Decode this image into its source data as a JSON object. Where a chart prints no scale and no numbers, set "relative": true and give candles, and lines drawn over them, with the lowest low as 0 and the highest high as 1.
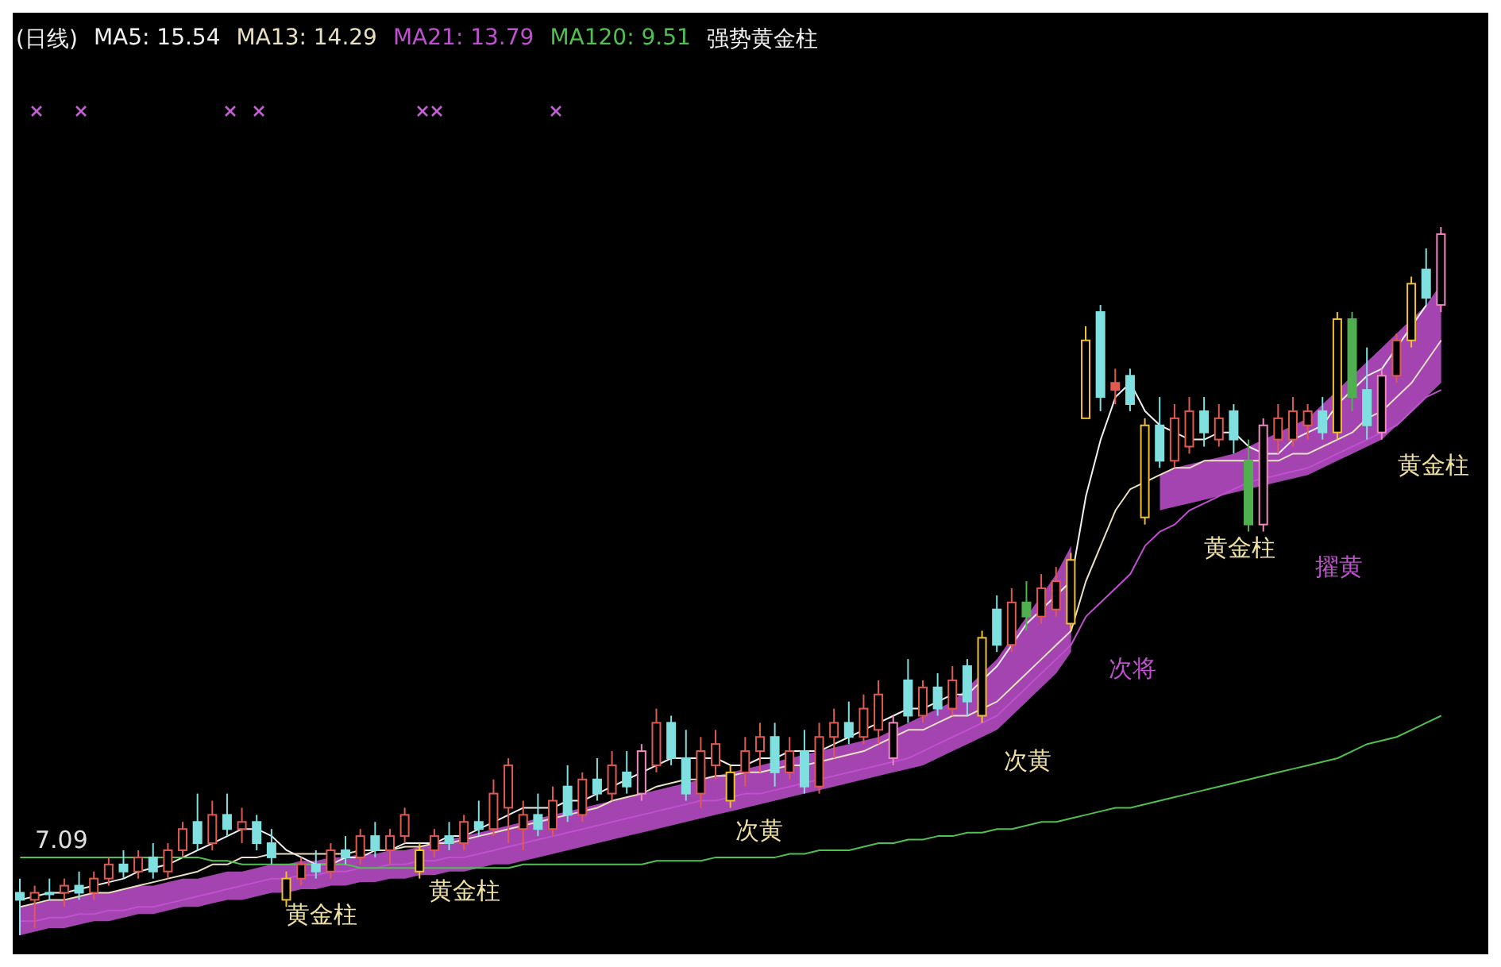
{
  "chart_data": {
    "type": "candlestick",
    "title": "(日线)",
    "subtitle": "强势黄金柱",
    "relative": true,
    "tick_labels": false,
    "legend": "top left",
    "categories": [
      null,
      null,
      null,
      null,
      null,
      null,
      null,
      null,
      null,
      null,
      null,
      null,
      null,
      null,
      null,
      null,
      null,
      null,
      null,
      null,
      null,
      null,
      null,
      null,
      null,
      null,
      null,
      null,
      null,
      null,
      null,
      null,
      null,
      null,
      null,
      null,
      null,
      null,
      null,
      null,
      null,
      null,
      null,
      null,
      null,
      null,
      null,
      null,
      null,
      null,
      null,
      null,
      null,
      null,
      null,
      null,
      null,
      null,
      null,
      null,
      null,
      null,
      null,
      null,
      null,
      null,
      null,
      null,
      null,
      null,
      null,
      null,
      null,
      null,
      null,
      null,
      null,
      null,
      null,
      null,
      null,
      null,
      null,
      null,
      null,
      null,
      null,
      null,
      null,
      null,
      null,
      null,
      null,
      null,
      null,
      null,
      null
    ],
    "ohlc": [
      [
        0.06,
        0.08,
        0.0,
        0.05
      ],
      [
        0.05,
        0.07,
        0.01,
        0.06
      ],
      [
        0.06,
        0.08,
        0.05,
        0.06
      ],
      [
        0.06,
        0.08,
        0.04,
        0.07
      ],
      [
        0.07,
        0.09,
        0.05,
        0.06
      ],
      [
        0.06,
        0.09,
        0.05,
        0.08
      ],
      [
        0.08,
        0.11,
        0.07,
        0.1
      ],
      [
        0.1,
        0.12,
        0.08,
        0.09
      ],
      [
        0.09,
        0.12,
        0.08,
        0.11
      ],
      [
        0.11,
        0.13,
        0.08,
        0.09
      ],
      [
        0.09,
        0.13,
        0.08,
        0.12
      ],
      [
        0.12,
        0.16,
        0.11,
        0.15
      ],
      [
        0.16,
        0.2,
        0.12,
        0.13
      ],
      [
        0.13,
        0.19,
        0.12,
        0.17
      ],
      [
        0.17,
        0.2,
        0.14,
        0.15
      ],
      [
        0.15,
        0.18,
        0.13,
        0.16
      ],
      [
        0.16,
        0.17,
        0.12,
        0.13
      ],
      [
        0.13,
        0.15,
        0.1,
        0.11
      ],
      [
        0.05,
        0.09,
        0.04,
        0.08
      ],
      [
        0.08,
        0.11,
        0.07,
        0.1
      ],
      [
        0.1,
        0.12,
        0.08,
        0.09
      ],
      [
        0.09,
        0.13,
        0.08,
        0.12
      ],
      [
        0.12,
        0.14,
        0.1,
        0.11
      ],
      [
        0.11,
        0.15,
        0.1,
        0.14
      ],
      [
        0.14,
        0.16,
        0.11,
        0.12
      ],
      [
        0.12,
        0.15,
        0.1,
        0.14
      ],
      [
        0.14,
        0.18,
        0.13,
        0.17
      ],
      [
        0.09,
        0.13,
        0.08,
        0.12
      ],
      [
        0.12,
        0.15,
        0.11,
        0.14
      ],
      [
        0.14,
        0.16,
        0.12,
        0.13
      ],
      [
        0.13,
        0.17,
        0.12,
        0.16
      ],
      [
        0.16,
        0.19,
        0.14,
        0.15
      ],
      [
        0.15,
        0.22,
        0.14,
        0.2
      ],
      [
        0.18,
        0.25,
        0.13,
        0.24
      ],
      [
        0.15,
        0.19,
        0.12,
        0.17
      ],
      [
        0.17,
        0.2,
        0.14,
        0.15
      ],
      [
        0.15,
        0.21,
        0.14,
        0.19
      ],
      [
        0.21,
        0.24,
        0.16,
        0.17
      ],
      [
        0.17,
        0.23,
        0.16,
        0.22
      ],
      [
        0.22,
        0.25,
        0.19,
        0.2
      ],
      [
        0.2,
        0.26,
        0.19,
        0.24
      ],
      [
        0.23,
        0.26,
        0.2,
        0.21
      ],
      [
        0.2,
        0.27,
        0.19,
        0.26
      ],
      [
        0.24,
        0.32,
        0.23,
        0.3
      ],
      [
        0.3,
        0.31,
        0.24,
        0.25
      ],
      [
        0.25,
        0.29,
        0.19,
        0.2
      ],
      [
        0.2,
        0.28,
        0.18,
        0.26
      ],
      [
        0.24,
        0.29,
        0.22,
        0.27
      ],
      [
        0.19,
        0.24,
        0.18,
        0.23
      ],
      [
        0.23,
        0.28,
        0.21,
        0.26
      ],
      [
        0.26,
        0.3,
        0.23,
        0.28
      ],
      [
        0.28,
        0.3,
        0.21,
        0.23
      ],
      [
        0.23,
        0.28,
        0.22,
        0.26
      ],
      [
        0.26,
        0.29,
        0.2,
        0.21
      ],
      [
        0.21,
        0.3,
        0.2,
        0.28
      ],
      [
        0.28,
        0.32,
        0.25,
        0.3
      ],
      [
        0.3,
        0.33,
        0.27,
        0.28
      ],
      [
        0.28,
        0.34,
        0.27,
        0.32
      ],
      [
        0.29,
        0.36,
        0.27,
        0.34
      ],
      [
        0.25,
        0.31,
        0.24,
        0.3
      ],
      [
        0.36,
        0.39,
        0.3,
        0.31
      ],
      [
        0.31,
        0.36,
        0.3,
        0.35
      ],
      [
        0.35,
        0.37,
        0.31,
        0.32
      ],
      [
        0.32,
        0.38,
        0.31,
        0.36
      ],
      [
        0.38,
        0.39,
        0.31,
        0.33
      ],
      [
        0.31,
        0.43,
        0.3,
        0.42
      ],
      [
        0.46,
        0.48,
        0.4,
        0.41
      ],
      [
        0.41,
        0.49,
        0.4,
        0.47
      ],
      [
        0.47,
        0.5,
        0.43,
        0.45
      ],
      [
        0.45,
        0.51,
        0.44,
        0.49
      ],
      [
        0.46,
        0.52,
        0.45,
        0.5
      ],
      [
        0.44,
        0.54,
        0.43,
        0.53
      ],
      [
        0.73,
        0.86,
        0.73,
        0.84
      ],
      [
        0.88,
        0.89,
        0.74,
        0.76
      ],
      [
        0.78,
        0.8,
        0.75,
        0.77
      ],
      [
        0.79,
        0.8,
        0.74,
        0.75
      ],
      [
        0.59,
        0.73,
        0.58,
        0.72
      ],
      [
        0.72,
        0.76,
        0.66,
        0.67
      ],
      [
        0.67,
        0.75,
        0.66,
        0.73
      ],
      [
        0.69,
        0.76,
        0.68,
        0.74
      ],
      [
        0.74,
        0.76,
        0.69,
        0.71
      ],
      [
        0.7,
        0.75,
        0.69,
        0.73
      ],
      [
        0.74,
        0.75,
        0.68,
        0.7
      ],
      [
        0.67,
        0.7,
        0.57,
        0.58
      ],
      [
        0.58,
        0.73,
        0.57,
        0.72
      ],
      [
        0.7,
        0.75,
        0.68,
        0.73
      ],
      [
        0.7,
        0.76,
        0.69,
        0.74
      ],
      [
        0.72,
        0.75,
        0.7,
        0.74
      ],
      [
        0.74,
        0.76,
        0.7,
        0.71
      ],
      [
        0.71,
        0.88,
        0.7,
        0.87
      ],
      [
        0.87,
        0.88,
        0.74,
        0.76
      ],
      [
        0.77,
        0.83,
        0.7,
        0.72
      ],
      [
        0.71,
        0.8,
        0.7,
        0.79
      ],
      [
        0.79,
        0.85,
        0.78,
        0.84
      ],
      [
        0.84,
        0.93,
        0.83,
        0.92
      ],
      [
        0.94,
        0.97,
        0.89,
        0.9
      ],
      [
        0.89,
        1.0,
        0.88,
        0.99
      ]
    ],
    "colors": [
      "#80e0e0",
      "#e05a50",
      "#80e0e0",
      "#e05a50",
      "#80e0e0",
      "#e05a50",
      "#e05a50",
      "#80e0e0",
      "#e05a50",
      "#80e0e0",
      "#e05a50",
      "#e05a50",
      "#80e0e0",
      "#e05a50",
      "#80e0e0",
      "#e05a50",
      "#80e0e0",
      "#80e0e0",
      "#f0c030",
      "#e05a50",
      "#80e0e0",
      "#e05a50",
      "#80e0e0",
      "#e05a50",
      "#80e0e0",
      "#e05a50",
      "#e05a50",
      "#f0c030",
      "#e05a50",
      "#80e0e0",
      "#e05a50",
      "#80e0e0",
      "#e05a50",
      "#e05a50",
      "#e05a50",
      "#80e0e0",
      "#e05a50",
      "#80e0e0",
      "#e05a50",
      "#80e0e0",
      "#e05a50",
      "#80e0e0",
      "#f088c0",
      "#e05a50",
      "#80e0e0",
      "#80e0e0",
      "#e05a50",
      "#e05a50",
      "#f0c030",
      "#e05a50",
      "#e05a50",
      "#80e0e0",
      "#e05a50",
      "#80e0e0",
      "#e05a50",
      "#e05a50",
      "#80e0e0",
      "#e05a50",
      "#e05a50",
      "#f088c0",
      "#80e0e0",
      "#e05a50",
      "#80e0e0",
      "#e05a50",
      "#80e0e0",
      "#f0c030",
      "#80e0e0",
      "#e05a50",
      "#50b050",
      "#e05a50",
      "#e05a50",
      "#f0c030",
      "#f0c030",
      "#80e0e0",
      "#e05a50",
      "#80e0e0",
      "#f0c030",
      "#80e0e0",
      "#e05a50",
      "#e05a50",
      "#80e0e0",
      "#e05a50",
      "#80e0e0",
      "#50b050",
      "#f088c0",
      "#e05a50",
      "#e05a50",
      "#e05a50",
      "#80e0e0",
      "#f0c030",
      "#50b050",
      "#80e0e0",
      "#f088c0",
      "#e05a50",
      "#f0c030",
      "#80e0e0",
      "#f088c0"
    ],
    "series": [
      {
        "type": "line",
        "name": "MA21: 13.79",
        "color": "#c050d0",
        "lower": [
          0.0,
          0.005,
          0.01,
          0.01,
          0.015,
          0.02,
          0.02,
          0.025,
          0.03,
          0.03,
          0.035,
          0.04,
          0.04,
          0.045,
          0.05,
          0.05,
          0.055,
          0.06,
          0.06,
          0.065,
          0.065,
          0.07,
          0.07,
          0.075,
          0.075,
          0.08,
          0.08,
          0.085,
          0.085,
          0.09,
          0.09,
          0.095,
          0.1,
          0.1,
          0.105,
          0.11,
          0.115,
          0.12,
          0.125,
          0.13,
          0.135,
          0.14,
          0.145,
          0.15,
          0.155,
          0.16,
          0.165,
          0.17,
          0.175,
          0.18,
          0.185,
          0.19,
          0.195,
          0.2,
          0.205,
          0.21,
          0.215,
          0.22,
          0.225,
          0.23,
          0.235,
          0.24,
          0.25,
          0.26,
          0.27,
          0.28,
          0.29,
          0.31,
          0.33,
          0.35,
          0.37,
          0.4,
          null,
          null,
          null,
          null,
          null,
          0.6,
          0.605,
          0.61,
          0.615,
          0.62,
          0.625,
          0.63,
          0.635,
          0.64,
          0.645,
          0.65,
          0.66,
          0.67,
          0.68,
          0.69,
          0.7,
          0.72,
          0.74,
          0.76,
          0.78
        ],
        "upper": [
          0.04,
          0.045,
          0.05,
          0.05,
          0.055,
          0.06,
          0.06,
          0.065,
          0.07,
          0.07,
          0.075,
          0.08,
          0.08,
          0.085,
          0.09,
          0.09,
          0.095,
          0.1,
          0.1,
          0.105,
          0.105,
          0.11,
          0.11,
          0.115,
          0.115,
          0.12,
          0.12,
          0.125,
          0.13,
          0.135,
          0.14,
          0.145,
          0.15,
          0.155,
          0.16,
          0.165,
          0.17,
          0.175,
          0.18,
          0.185,
          0.19,
          0.195,
          0.2,
          0.205,
          0.21,
          0.215,
          0.22,
          0.225,
          0.23,
          0.235,
          0.24,
          0.245,
          0.25,
          0.255,
          0.26,
          0.265,
          0.27,
          0.275,
          0.28,
          0.29,
          0.3,
          0.31,
          0.32,
          0.33,
          0.35,
          0.37,
          0.39,
          0.42,
          0.45,
          0.48,
          0.51,
          0.55,
          null,
          null,
          null,
          null,
          null,
          0.65,
          0.66,
          0.665,
          0.67,
          0.675,
          0.68,
          0.69,
          0.7,
          0.71,
          0.72,
          0.73,
          0.75,
          0.77,
          0.79,
          0.81,
          0.83,
          0.85,
          0.87,
          0.89,
          0.92
        ],
        "values": [
          0.02,
          0.02,
          0.025,
          0.025,
          0.03,
          0.03,
          0.035,
          0.035,
          0.04,
          0.04,
          0.045,
          0.05,
          0.055,
          0.06,
          0.065,
          0.07,
          0.075,
          0.08,
          0.08,
          0.085,
          0.085,
          0.09,
          0.09,
          0.095,
          0.095,
          0.1,
          0.1,
          0.105,
          0.105,
          0.11,
          0.11,
          0.115,
          0.12,
          0.125,
          0.13,
          0.135,
          0.14,
          0.145,
          0.15,
          0.155,
          0.16,
          0.165,
          0.17,
          0.175,
          0.18,
          0.185,
          0.19,
          0.19,
          0.195,
          0.2,
          0.2,
          0.205,
          0.21,
          0.215,
          0.22,
          0.225,
          0.23,
          0.235,
          0.24,
          0.245,
          0.25,
          0.26,
          0.27,
          0.28,
          0.29,
          0.3,
          0.31,
          0.33,
          0.35,
          0.37,
          0.39,
          0.41,
          0.45,
          0.47,
          0.49,
          0.51,
          0.55,
          0.57,
          0.58,
          0.6,
          0.61,
          0.62,
          0.63,
          0.64,
          0.645,
          0.65,
          0.655,
          0.66,
          0.67,
          0.68,
          0.69,
          0.7,
          0.71,
          0.72,
          0.74,
          0.76,
          0.77
        ]
      },
      {
        "type": "line",
        "name": "MA5: 15.54",
        "color": "#f0f0f0",
        "values": [
          0.05,
          0.055,
          0.06,
          0.06,
          0.065,
          0.07,
          0.075,
          0.08,
          0.09,
          0.095,
          0.1,
          0.11,
          0.12,
          0.13,
          0.14,
          0.15,
          0.15,
          0.14,
          0.12,
          0.11,
          0.1,
          0.1,
          0.11,
          0.11,
          0.12,
          0.12,
          0.13,
          0.13,
          0.13,
          0.14,
          0.14,
          0.15,
          0.16,
          0.17,
          0.18,
          0.18,
          0.18,
          0.19,
          0.19,
          0.2,
          0.21,
          0.22,
          0.23,
          0.24,
          0.25,
          0.25,
          0.25,
          0.25,
          0.24,
          0.24,
          0.25,
          0.25,
          0.26,
          0.26,
          0.26,
          0.27,
          0.28,
          0.29,
          0.3,
          0.31,
          0.32,
          0.32,
          0.33,
          0.34,
          0.34,
          0.36,
          0.38,
          0.41,
          0.44,
          0.46,
          0.48,
          0.5,
          0.62,
          0.7,
          0.76,
          0.78,
          0.74,
          0.72,
          0.71,
          0.7,
          0.7,
          0.71,
          0.71,
          0.69,
          0.68,
          0.68,
          0.7,
          0.71,
          0.72,
          0.75,
          0.77,
          0.79,
          0.8,
          0.83,
          0.86,
          0.89,
          null
        ]
      },
      {
        "type": "line",
        "name": "MA13: 14.29",
        "color": "#e8e0c0",
        "values": [
          0.04,
          0.045,
          0.05,
          0.05,
          0.055,
          0.06,
          0.06,
          0.065,
          0.07,
          0.075,
          0.08,
          0.085,
          0.09,
          0.1,
          0.1,
          0.11,
          0.11,
          0.115,
          0.115,
          0.115,
          0.115,
          0.115,
          0.115,
          0.12,
          0.12,
          0.12,
          0.125,
          0.125,
          0.13,
          0.13,
          0.135,
          0.14,
          0.145,
          0.15,
          0.155,
          0.16,
          0.165,
          0.17,
          0.175,
          0.18,
          0.19,
          0.195,
          0.2,
          0.21,
          0.215,
          0.22,
          0.22,
          0.225,
          0.225,
          0.23,
          0.23,
          0.235,
          0.24,
          0.24,
          0.245,
          0.25,
          0.255,
          0.26,
          0.27,
          0.28,
          0.29,
          0.29,
          0.3,
          0.31,
          0.31,
          0.32,
          0.33,
          0.35,
          0.37,
          0.39,
          0.41,
          0.43,
          0.5,
          0.55,
          0.6,
          0.63,
          0.64,
          0.65,
          0.66,
          0.66,
          0.67,
          0.67,
          0.67,
          0.67,
          0.67,
          0.67,
          0.68,
          0.68,
          0.69,
          0.7,
          0.71,
          0.73,
          0.74,
          0.76,
          0.78,
          0.81,
          0.84
        ]
      },
      {
        "type": "line",
        "name": "MA120: 9.51",
        "color": "#50c050",
        "values": [
          0.11,
          0.11,
          0.11,
          0.11,
          0.11,
          0.11,
          0.11,
          0.11,
          0.11,
          0.11,
          0.11,
          0.11,
          0.11,
          0.105,
          0.105,
          0.1,
          0.1,
          0.1,
          0.1,
          0.1,
          0.1,
          0.1,
          0.1,
          0.095,
          0.095,
          0.095,
          0.095,
          0.095,
          0.095,
          0.095,
          0.095,
          0.095,
          0.095,
          0.095,
          0.1,
          0.1,
          0.1,
          0.1,
          0.1,
          0.1,
          0.1,
          0.1,
          0.1,
          0.105,
          0.105,
          0.105,
          0.105,
          0.11,
          0.11,
          0.11,
          0.11,
          0.11,
          0.115,
          0.115,
          0.12,
          0.12,
          0.12,
          0.125,
          0.13,
          0.13,
          0.135,
          0.135,
          0.14,
          0.14,
          0.145,
          0.145,
          0.15,
          0.15,
          0.155,
          0.16,
          0.16,
          0.165,
          0.17,
          0.175,
          0.18,
          0.18,
          0.185,
          0.19,
          0.195,
          0.2,
          0.205,
          0.21,
          0.215,
          0.22,
          0.225,
          0.23,
          0.235,
          0.24,
          0.245,
          0.25,
          0.26,
          0.27,
          0.275,
          0.28,
          0.29,
          0.3,
          0.31
        ]
      }
    ],
    "annotations": [
      "7.09",
      "黄金柱",
      "黄金柱",
      "次黄",
      "次黄",
      "次将",
      "黄金柱",
      "擢黄",
      "黄金柱"
    ]
  }
}
